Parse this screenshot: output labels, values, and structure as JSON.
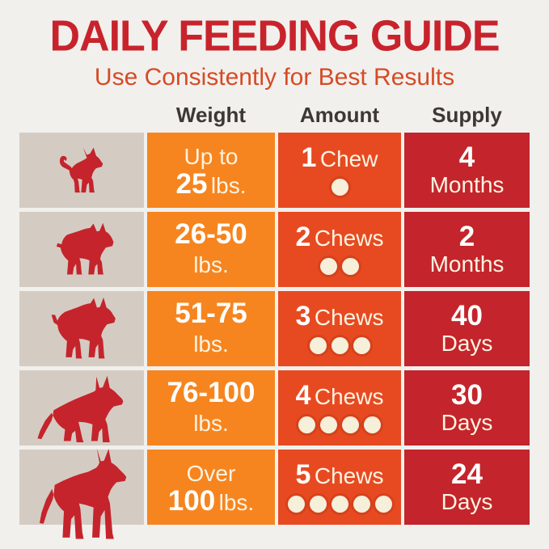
{
  "header": {
    "title": "DAILY FEEDING GUIDE",
    "subtitle": "Use Consistently for Best Results"
  },
  "table": {
    "headers": {
      "weight": "Weight",
      "amount": "Amount",
      "supply": "Supply"
    }
  },
  "rows": [
    {
      "breed": "chihuahua",
      "weight_top_bold": "",
      "weight_top_regular": "Up to",
      "weight_bottom_bold": "25",
      "weight_bottom_regular": "lbs.",
      "amount_number": "1",
      "amount_word": "Chew",
      "chews": 1,
      "supply_number": "4",
      "supply_unit": "Months"
    },
    {
      "breed": "french-bulldog",
      "weight_top_bold": "26-50",
      "weight_top_regular": "",
      "weight_bottom_bold": "",
      "weight_bottom_regular": "lbs.",
      "amount_number": "2",
      "amount_word": "Chews",
      "chews": 2,
      "supply_number": "2",
      "supply_unit": "Months"
    },
    {
      "breed": "boxer",
      "weight_top_bold": "51-75",
      "weight_top_regular": "",
      "weight_bottom_bold": "",
      "weight_bottom_regular": "lbs.",
      "amount_number": "3",
      "amount_word": "Chews",
      "chews": 3,
      "supply_number": "40",
      "supply_unit": "Days"
    },
    {
      "breed": "german-shepherd",
      "weight_top_bold": "76-100",
      "weight_top_regular": "",
      "weight_bottom_bold": "",
      "weight_bottom_regular": "lbs.",
      "amount_number": "4",
      "amount_word": "Chews",
      "chews": 4,
      "supply_number": "30",
      "supply_unit": "Days"
    },
    {
      "breed": "great-dane",
      "weight_top_bold": "",
      "weight_top_regular": "Over",
      "weight_bottom_bold": "100",
      "weight_bottom_regular": "lbs.",
      "amount_number": "5",
      "amount_word": "Chews",
      "chews": 5,
      "supply_number": "24",
      "supply_unit": "Days"
    }
  ],
  "chart_data": {
    "type": "table",
    "title": "DAILY FEEDING GUIDE",
    "subtitle": "Use Consistently for Best Results",
    "columns": [
      "Weight",
      "Amount",
      "Supply"
    ],
    "rows": [
      [
        "Up to 25 lbs.",
        "1 Chew",
        "4 Months"
      ],
      [
        "26-50 lbs.",
        "2 Chews",
        "2 Months"
      ],
      [
        "51-75 lbs.",
        "3 Chews",
        "40 Days"
      ],
      [
        "76-100 lbs.",
        "4 Chews",
        "30 Days"
      ],
      [
        "Over 100 lbs.",
        "5 Chews",
        "24 Days"
      ]
    ],
    "dog_sizes": [
      "chihuahua",
      "french-bulldog",
      "boxer",
      "german-shepherd",
      "great-dane"
    ]
  },
  "colors": {
    "bg": "#F2F0ED",
    "beige": "#D4CCC3",
    "orange": "#F6851F",
    "flame": "#E74A21",
    "red": "#C4242B",
    "dogred": "#C5242C",
    "title": "#C8232C",
    "subtitle": "#D54B26",
    "headtext": "#3C3834",
    "cream": "#FCF3E1",
    "white": "#FFFFFF",
    "dot": "#F6EFDA"
  }
}
